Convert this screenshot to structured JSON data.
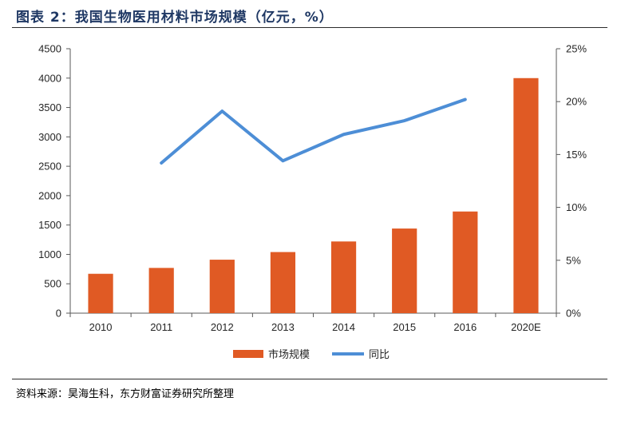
{
  "header": {
    "title": "图表 2：我国生物医用材料市场规模（亿元，%）"
  },
  "footer": {
    "source": "资料来源：昊海生科，东方财富证券研究所整理"
  },
  "chart_data": {
    "type": "bar+line",
    "categories": [
      "2010",
      "2011",
      "2012",
      "2013",
      "2014",
      "2015",
      "2016",
      "2020E"
    ],
    "series": [
      {
        "name": "市场规模",
        "type": "bar",
        "axis": "left",
        "color": "#e05a24",
        "values": [
          670,
          770,
          910,
          1040,
          1220,
          1440,
          1730,
          4000
        ]
      },
      {
        "name": "同比",
        "type": "line",
        "axis": "right",
        "color": "#4d8ed6",
        "values": [
          null,
          14.2,
          19.1,
          14.4,
          16.9,
          18.2,
          20.2,
          null
        ]
      }
    ],
    "y_left": {
      "min": 0,
      "max": 4500,
      "step": 500,
      "tick_labels": [
        "0",
        "500",
        "1000",
        "1500",
        "2000",
        "2500",
        "3000",
        "3500",
        "4000",
        "4500"
      ]
    },
    "y_right": {
      "min": 0,
      "max": 25,
      "step": 5,
      "tick_labels": [
        "0%",
        "5%",
        "10%",
        "15%",
        "20%",
        "25%"
      ]
    },
    "legend": {
      "position": "bottom",
      "items": [
        "市场规模",
        "同比"
      ]
    },
    "grid": false
  }
}
